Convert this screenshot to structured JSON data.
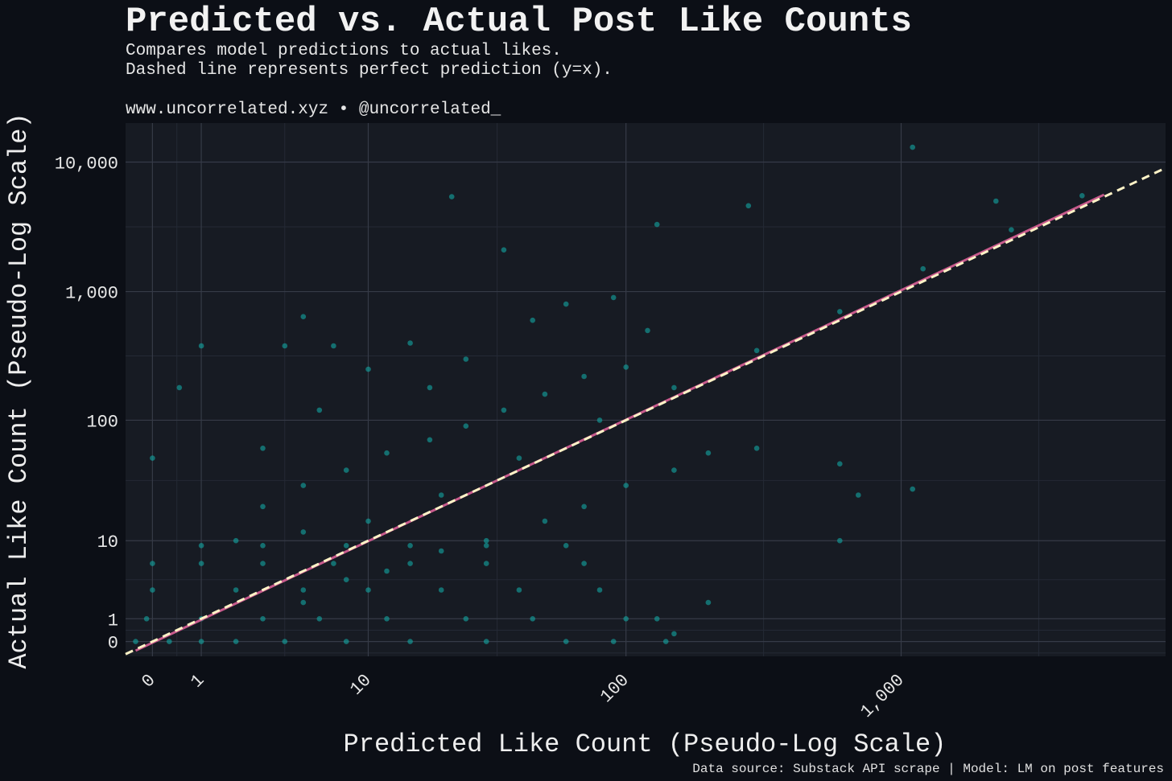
{
  "chart_data": {
    "type": "scatter",
    "title": "Predicted vs. Actual Post Like Counts",
    "subtitle_lines": [
      "Compares model predictions to actual likes.",
      "Dashed line represents perfect prediction (y=x)."
    ],
    "credit": "www.uncorrelated.xyz • @uncorrelated_",
    "xlabel": "Predicted Like Count (Pseudo-Log Scale)",
    "ylabel": "Actual Like Count (Pseudo-Log Scale)",
    "caption": "Data source: Substack API scrape | Model: LM on post features",
    "scale": "pseudo-log",
    "xlim": [
      -0.5,
      9000
    ],
    "ylim": [
      -0.6,
      20000
    ],
    "x_ticks": [
      {
        "value": 0,
        "label": "0"
      },
      {
        "value": 1,
        "label": "1"
      },
      {
        "value": 10,
        "label": "10"
      },
      {
        "value": 100,
        "label": "100"
      },
      {
        "value": 1000,
        "label": "1,000"
      }
    ],
    "y_ticks": [
      {
        "value": 0,
        "label": "0"
      },
      {
        "value": 1,
        "label": "1"
      },
      {
        "value": 10,
        "label": "10"
      },
      {
        "value": 100,
        "label": "100"
      },
      {
        "value": 1000,
        "label": "1,000"
      },
      {
        "value": 10000,
        "label": "10,000"
      }
    ],
    "grid": true,
    "reference_line": {
      "kind": "y=x",
      "style": "dashed",
      "color": "#fff3c7"
    },
    "fit_line": {
      "color": "#c75a8c",
      "points": [
        [
          -0.3,
          -0.35
        ],
        [
          5400,
          5600
        ]
      ]
    },
    "point_color": "#13a8a4",
    "series": [
      {
        "points": [
          [
            -0.3,
            0
          ],
          [
            0.3,
            0
          ],
          [
            1,
            0
          ],
          [
            2,
            0
          ],
          [
            4,
            0
          ],
          [
            8,
            0
          ],
          [
            15,
            0
          ],
          [
            30,
            0
          ],
          [
            60,
            0
          ],
          [
            90,
            0
          ],
          [
            140,
            0
          ],
          [
            -0.1,
            1
          ],
          [
            1,
            1
          ],
          [
            3,
            1
          ],
          [
            6,
            1
          ],
          [
            12,
            1
          ],
          [
            25,
            1
          ],
          [
            45,
            1
          ],
          [
            100,
            1
          ],
          [
            130,
            1
          ],
          [
            0,
            3
          ],
          [
            2,
            3
          ],
          [
            5,
            3
          ],
          [
            10,
            3
          ],
          [
            20,
            3
          ],
          [
            40,
            3
          ],
          [
            80,
            3
          ],
          [
            0,
            6
          ],
          [
            1,
            6
          ],
          [
            3,
            6
          ],
          [
            7,
            6
          ],
          [
            15,
            6
          ],
          [
            30,
            6
          ],
          [
            70,
            6
          ],
          [
            1,
            9
          ],
          [
            3,
            9
          ],
          [
            8,
            9
          ],
          [
            15,
            9
          ],
          [
            30,
            9
          ],
          [
            60,
            9
          ],
          [
            2,
            10
          ],
          [
            5,
            12
          ],
          [
            10,
            15
          ],
          [
            20,
            25
          ],
          [
            40,
            50
          ],
          [
            80,
            100
          ],
          [
            150,
            180
          ],
          [
            300,
            350
          ],
          [
            600,
            700
          ],
          [
            1200,
            1500
          ],
          [
            2500,
            3000
          ],
          [
            4500,
            5500
          ],
          [
            0,
            50
          ],
          [
            0.5,
            180
          ],
          [
            1,
            380
          ],
          [
            4,
            380
          ],
          [
            5,
            640
          ],
          [
            7,
            380
          ],
          [
            22,
            5400
          ],
          [
            35,
            2100
          ],
          [
            130,
            3300
          ],
          [
            280,
            4600
          ],
          [
            1100,
            13000
          ],
          [
            2200,
            5000
          ],
          [
            300,
            60
          ],
          [
            700,
            25
          ],
          [
            1100,
            28
          ],
          [
            600,
            10
          ],
          [
            200,
            2
          ],
          [
            150,
            0.3
          ],
          [
            600,
            45
          ],
          [
            3,
            60
          ],
          [
            6,
            120
          ],
          [
            10,
            250
          ],
          [
            15,
            400
          ],
          [
            18,
            180
          ],
          [
            25,
            300
          ],
          [
            45,
            600
          ],
          [
            60,
            800
          ],
          [
            90,
            900
          ],
          [
            120,
            500
          ],
          [
            5,
            2
          ],
          [
            8,
            4
          ],
          [
            12,
            5
          ],
          [
            20,
            8
          ],
          [
            30,
            10
          ],
          [
            50,
            15
          ],
          [
            70,
            20
          ],
          [
            100,
            30
          ],
          [
            150,
            40
          ],
          [
            200,
            55
          ],
          [
            3,
            20
          ],
          [
            5,
            30
          ],
          [
            8,
            40
          ],
          [
            12,
            55
          ],
          [
            18,
            70
          ],
          [
            25,
            90
          ],
          [
            35,
            120
          ],
          [
            50,
            160
          ],
          [
            70,
            220
          ],
          [
            100,
            260
          ]
        ]
      }
    ]
  }
}
